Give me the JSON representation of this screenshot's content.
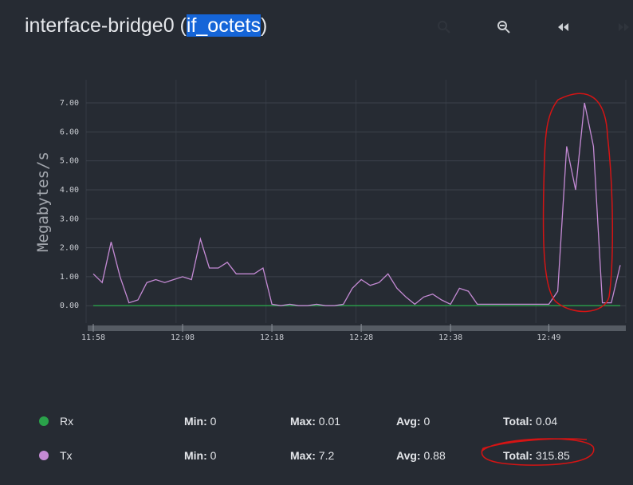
{
  "chart_data": {
    "type": "line",
    "title_prefix": "interface-bridge0 (",
    "title_highlight": "if_octets",
    "title_suffix": ")",
    "ylabel": "Megabytes/s",
    "x": [
      "11:58",
      "11:59",
      "12:00",
      "12:01",
      "12:02",
      "12:03",
      "12:04",
      "12:05",
      "12:06",
      "12:07",
      "12:08",
      "12:09",
      "12:10",
      "12:11",
      "12:12",
      "12:13",
      "12:14",
      "12:15",
      "12:16",
      "12:17",
      "12:18",
      "12:19",
      "12:20",
      "12:21",
      "12:22",
      "12:23",
      "12:24",
      "12:25",
      "12:26",
      "12:27",
      "12:28",
      "12:29",
      "12:30",
      "12:31",
      "12:32",
      "12:33",
      "12:34",
      "12:35",
      "12:36",
      "12:37",
      "12:38",
      "12:39",
      "12:40",
      "12:41",
      "12:42",
      "12:43",
      "12:44",
      "12:45",
      "12:46",
      "12:47",
      "12:48",
      "12:49",
      "12:50",
      "12:51",
      "12:52",
      "12:53",
      "12:54",
      "12:55",
      "12:56",
      "12:57"
    ],
    "xlim": [
      "11:58",
      "12:57"
    ],
    "xticks": [
      "11:58",
      "12:08",
      "12:18",
      "12:28",
      "12:38",
      "12:49"
    ],
    "ylim": [
      -0.6,
      7.8
    ],
    "yticks": [
      {
        "value": 0,
        "label": "0.00"
      },
      {
        "value": 1,
        "label": "1.00"
      },
      {
        "value": 2,
        "label": "2.00"
      },
      {
        "value": 3,
        "label": "3.00"
      },
      {
        "value": 4,
        "label": "4.00"
      },
      {
        "value": 5,
        "label": "5.00"
      },
      {
        "value": 6,
        "label": "6.00"
      },
      {
        "value": 7,
        "label": "7.00"
      }
    ],
    "grid": true,
    "series": [
      {
        "name": "Rx",
        "color": "#2aa24a",
        "values": [
          0,
          0,
          0,
          0,
          0,
          0,
          0,
          0,
          0,
          0,
          0,
          0,
          0,
          0,
          0,
          0,
          0,
          0,
          0,
          0,
          0,
          0,
          0,
          0,
          0,
          0,
          0,
          0,
          0,
          0,
          0,
          0,
          0,
          0,
          0,
          0,
          0,
          0,
          0,
          0,
          0,
          0,
          0,
          0,
          0,
          0,
          0,
          0,
          0,
          0,
          0,
          0,
          0,
          0,
          0,
          0,
          0,
          0,
          0,
          0
        ]
      },
      {
        "name": "Tx",
        "color": "#c48ad4",
        "values": [
          1.1,
          0.8,
          2.2,
          1.0,
          0.1,
          0.2,
          0.8,
          0.9,
          0.8,
          0.9,
          1.0,
          0.9,
          2.3,
          1.3,
          1.3,
          1.5,
          1.1,
          1.1,
          1.1,
          1.3,
          0.05,
          0.0,
          0.05,
          0.0,
          0.0,
          0.05,
          0.0,
          0.0,
          0.05,
          0.6,
          0.9,
          0.7,
          0.8,
          1.1,
          0.6,
          0.3,
          0.05,
          0.3,
          0.4,
          0.2,
          0.05,
          0.6,
          0.5,
          0.05,
          0.05,
          0.05,
          0.05,
          0.05,
          0.05,
          0.05,
          0.05,
          0.05,
          0.5,
          5.5,
          4.0,
          7.0,
          5.5,
          0.1,
          0.1,
          1.4
        ]
      }
    ],
    "stat_labels": [
      "Min:",
      "Max:",
      "Avg:",
      "Total:"
    ],
    "stats": [
      [
        0,
        0.01,
        0,
        0.04
      ],
      [
        0,
        7.2,
        0.88,
        315.85
      ]
    ]
  }
}
